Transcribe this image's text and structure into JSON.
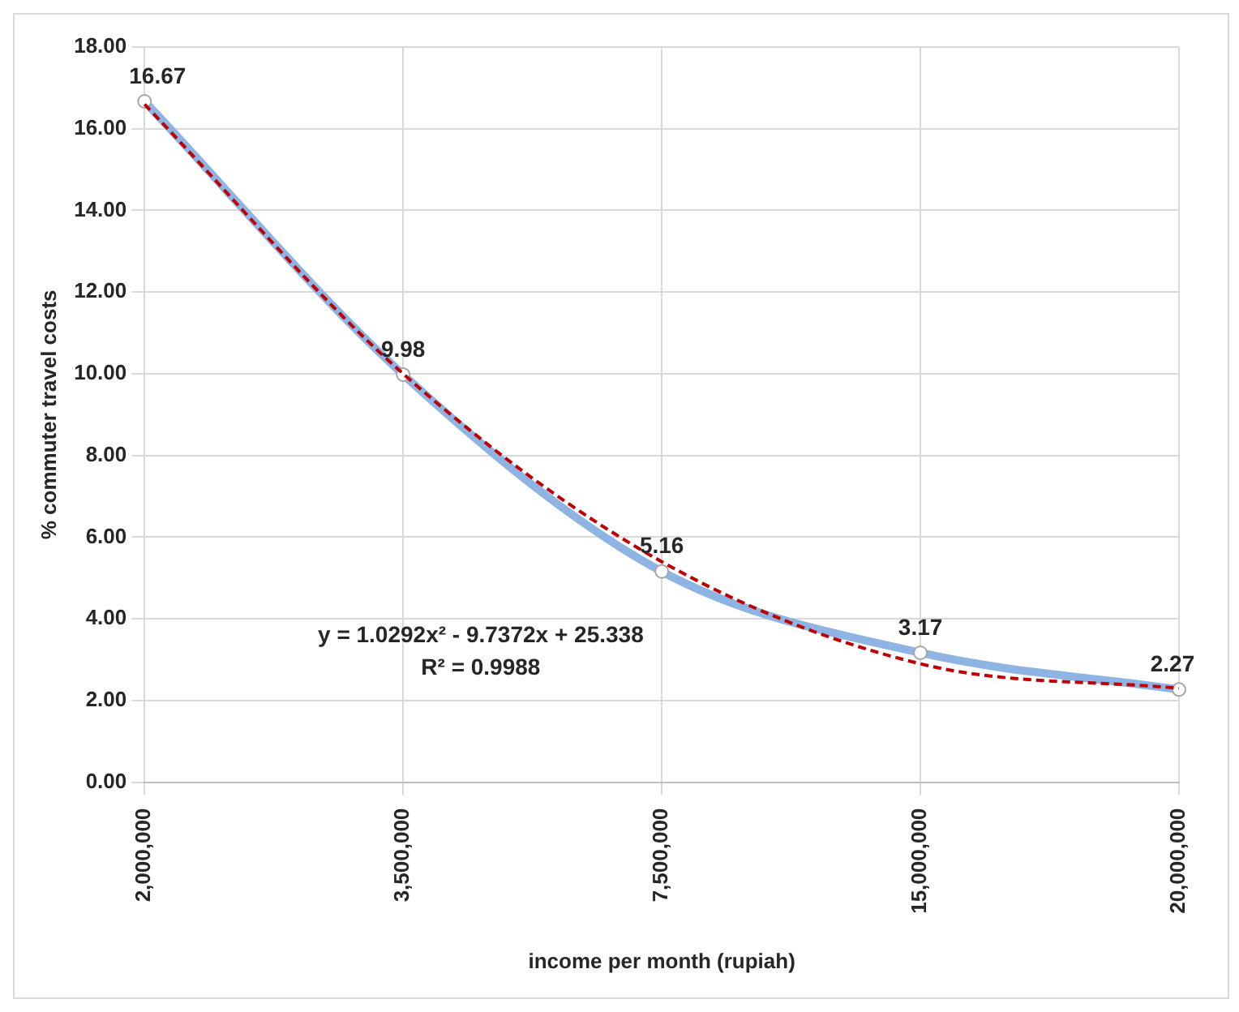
{
  "chart_data": {
    "type": "line",
    "xlabel": "income per month (rupiah)",
    "ylabel": "% commuter travel costs",
    "categories": [
      "2,000,000",
      "3,500,000",
      "7,500,000",
      "15,000,000",
      "20,000,000"
    ],
    "series": [
      {
        "color": "#8eb4e3",
        "values": [
          16.67,
          9.98,
          5.16,
          3.17,
          2.27
        ],
        "value_labels": [
          "16.67",
          "9.98",
          "5.16",
          "3.17",
          "2.27"
        ],
        "marker": "circle"
      },
      {
        "color": "#c00000",
        "values": [
          16.6,
          10.0,
          5.4,
          2.9,
          2.3
        ],
        "line_style": "dashed",
        "marker": "none"
      }
    ],
    "ylim": [
      0,
      18
    ],
    "yticks": [
      {
        "value": 0,
        "label": "0.00"
      },
      {
        "value": 2,
        "label": "2.00"
      },
      {
        "value": 4,
        "label": "4.00"
      },
      {
        "value": 6,
        "label": "6.00"
      },
      {
        "value": 8,
        "label": "8.00"
      },
      {
        "value": 10,
        "label": "10.00"
      },
      {
        "value": 12,
        "label": "12.00"
      },
      {
        "value": 14,
        "label": "14.00"
      },
      {
        "value": 16,
        "label": "16.00"
      },
      {
        "value": 18,
        "label": "18.00"
      }
    ],
    "grid": true,
    "annotations": [
      "y = 1.0292x² - 9.7372x + 25.338",
      "R² = 0.9988"
    ]
  }
}
